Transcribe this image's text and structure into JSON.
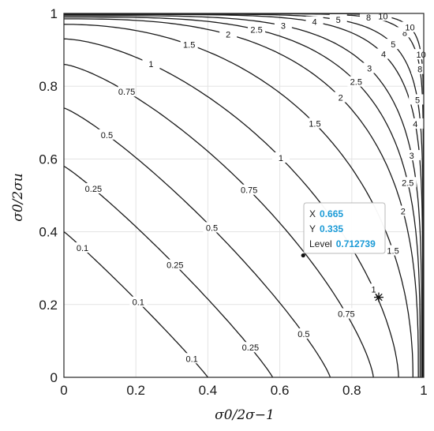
{
  "chart_data": {
    "type": "contour",
    "xlabel": "σ0/2σ−1",
    "ylabel": "σ0/2σu",
    "xlim": [
      0,
      1
    ],
    "ylim": [
      0,
      1
    ],
    "x_ticks": [
      "0",
      "0.2",
      "0.4",
      "0.6",
      "0.8",
      "1"
    ],
    "y_ticks": [
      "0",
      "0.2",
      "0.4",
      "0.6",
      "0.8",
      "1"
    ],
    "grid": true,
    "levels": [
      0.1,
      0.25,
      0.5,
      0.75,
      1,
      1.5,
      2,
      2.5,
      3,
      4,
      5,
      8,
      10
    ],
    "level_labels": [
      "0.1",
      "0.25",
      "0.5",
      "0.75",
      "1",
      "1.5",
      "2",
      "2.5",
      "3",
      "4",
      "5",
      "8",
      "10"
    ],
    "contour_color": "#1a1a1a",
    "datatip": {
      "x_label": "X",
      "x_value": "0.665",
      "y_label": "Y",
      "y_value": "0.335",
      "level_label": "Level",
      "level_value": "0.712739",
      "point": {
        "x": 0.665,
        "y": 0.335
      }
    },
    "marker": {
      "symbol": "asterisk",
      "x": 0.875,
      "y": 0.22
    }
  }
}
